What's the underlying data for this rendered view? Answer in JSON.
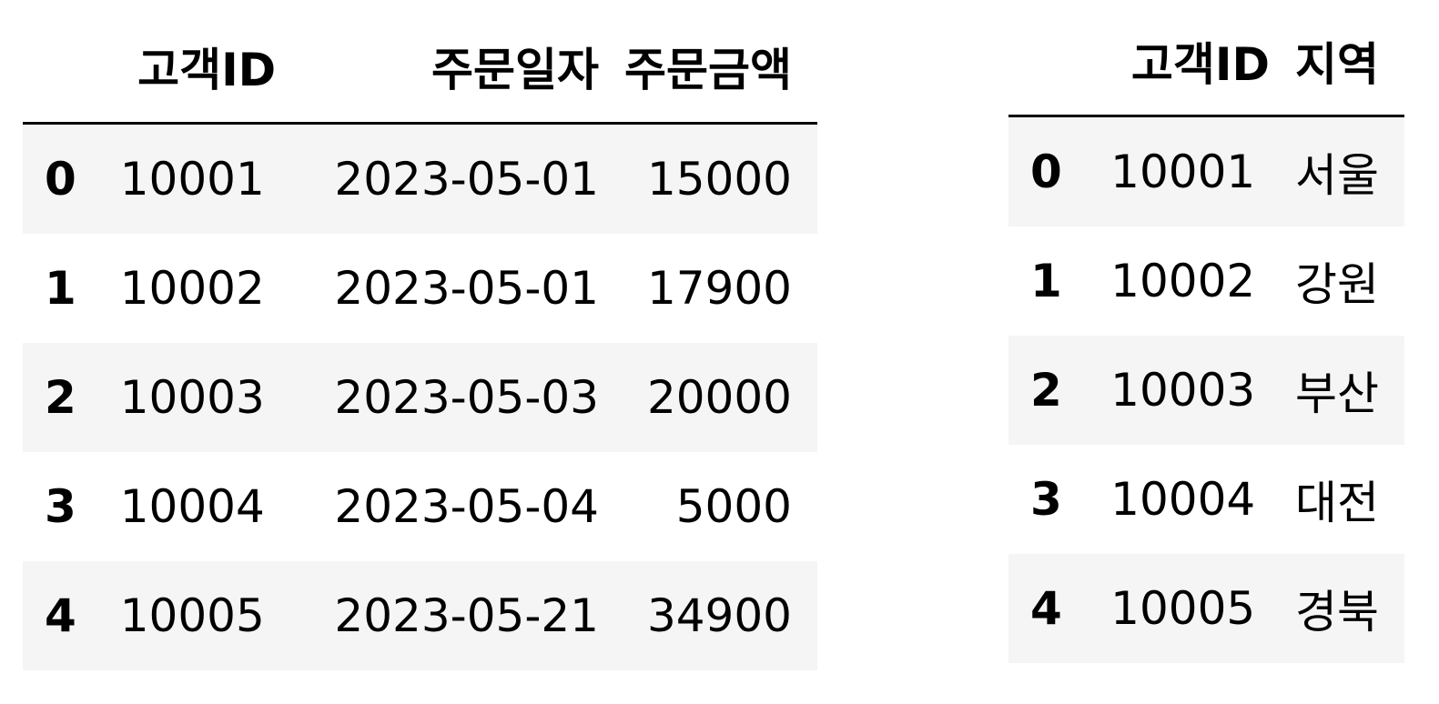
{
  "orders_frame": {
    "columns": [
      "고객ID",
      "주문일자",
      "주문금액"
    ],
    "rows": [
      {
        "index": "0",
        "customer_id": "10001",
        "order_date": "2023-05-01",
        "amount": "15000"
      },
      {
        "index": "1",
        "customer_id": "10002",
        "order_date": "2023-05-01",
        "amount": "17900"
      },
      {
        "index": "2",
        "customer_id": "10003",
        "order_date": "2023-05-03",
        "amount": "20000"
      },
      {
        "index": "3",
        "customer_id": "10004",
        "order_date": "2023-05-04",
        "amount": "5000"
      },
      {
        "index": "4",
        "customer_id": "10005",
        "order_date": "2023-05-21",
        "amount": "34900"
      }
    ]
  },
  "regions_frame": {
    "columns": [
      "고객ID",
      "지역"
    ],
    "rows": [
      {
        "index": "0",
        "customer_id": "10001",
        "region": "서울"
      },
      {
        "index": "1",
        "customer_id": "10002",
        "region": "강원"
      },
      {
        "index": "2",
        "customer_id": "10003",
        "region": "부산"
      },
      {
        "index": "3",
        "customer_id": "10004",
        "region": "대전"
      },
      {
        "index": "4",
        "customer_id": "10005",
        "region": "경북"
      }
    ]
  },
  "colors": {
    "stripe": "#f5f5f5",
    "background": "#ffffff",
    "text": "#000000",
    "header_rule": "#000000"
  }
}
